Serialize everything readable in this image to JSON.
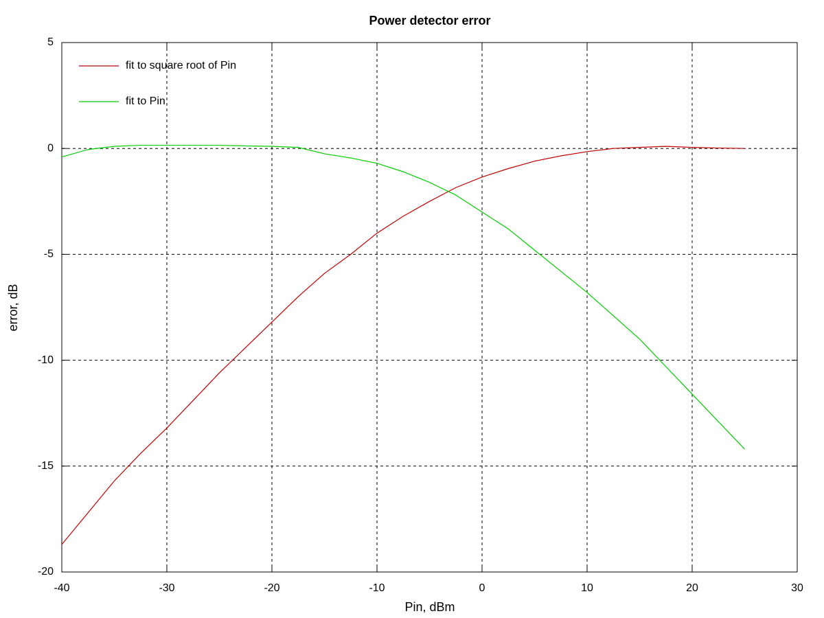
{
  "chart_data": {
    "type": "line",
    "title": "Power detector error",
    "xlabel": "Pin, dBm",
    "ylabel": "error, dB",
    "x": [
      -40,
      -37.5,
      -35,
      -32.5,
      -30,
      -27.5,
      -25,
      -22.5,
      -20,
      -17.5,
      -15,
      -12.5,
      -10,
      -7.5,
      -5,
      -2.5,
      0,
      2.5,
      5,
      7.5,
      10,
      12.5,
      15,
      17.5,
      20,
      22.5,
      25
    ],
    "series": [
      {
        "name": "fit to square root of Pin",
        "color": "#c00000",
        "values": [
          -18.7,
          -17.2,
          -15.7,
          -14.4,
          -13.2,
          -11.9,
          -10.6,
          -9.4,
          -8.2,
          -7.0,
          -5.9,
          -5.0,
          -4.0,
          -3.2,
          -2.5,
          -1.85,
          -1.35,
          -0.95,
          -0.6,
          -0.35,
          -0.15,
          0,
          0.05,
          0.1,
          0.05,
          0.02,
          0
        ]
      },
      {
        "name": "fit to Pin",
        "color": "#00cc00",
        "values": [
          -0.4,
          -0.05,
          0.1,
          0.15,
          0.15,
          0.15,
          0.15,
          0.12,
          0.1,
          0.05,
          -0.25,
          -0.45,
          -0.7,
          -1.1,
          -1.6,
          -2.2,
          -3.0,
          -3.8,
          -4.8,
          -5.8,
          -6.8,
          -7.9,
          -9.0,
          -10.3,
          -11.6,
          -12.9,
          -14.2
        ]
      }
    ],
    "xlim": [
      -40,
      30
    ],
    "xticks": [
      -40,
      -30,
      -20,
      -10,
      0,
      10,
      20,
      30
    ],
    "ylim": [
      -20,
      5
    ],
    "yticks": [
      -20,
      -15,
      -10,
      -5,
      0,
      5
    ],
    "grid": true,
    "legend": "top-left"
  }
}
